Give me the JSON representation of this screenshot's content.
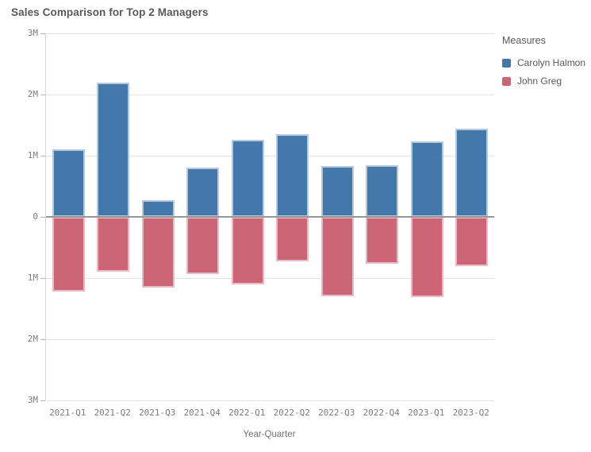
{
  "title": "Sales Comparison for Top 2 Managers",
  "legend": {
    "title": "Measures",
    "items": [
      {
        "label": "Carolyn Halmon",
        "color": "#4477aa"
      },
      {
        "label": "John Greg",
        "color": "#cc6677"
      }
    ]
  },
  "chart_data": {
    "type": "bar",
    "title": "Sales Comparison for Top 2 Managers",
    "xlabel": "Year-Quarter",
    "ylabel": "",
    "units": "M",
    "ylim": [
      -3,
      3
    ],
    "grid": true,
    "legend_position": "right",
    "categories": [
      "2021-Q1",
      "2021-Q2",
      "2021-Q3",
      "2021-Q4",
      "2022-Q1",
      "2022-Q2",
      "2022-Q3",
      "2022-Q4",
      "2023-Q1",
      "2023-Q2"
    ],
    "series": [
      {
        "name": "Carolyn Halmon",
        "color": "#4477aa",
        "values": [
          1.1,
          2.2,
          0.27,
          0.8,
          1.26,
          1.35,
          0.83,
          0.85,
          1.23,
          1.44
        ]
      },
      {
        "name": "John Greg",
        "color": "#cc6677",
        "values": [
          -1.22,
          -0.9,
          -1.16,
          -0.93,
          -1.1,
          -0.73,
          -1.3,
          -0.77,
          -1.31,
          -0.8
        ]
      }
    ],
    "yticks": [
      {
        "value": 3,
        "label": "3M"
      },
      {
        "value": 2,
        "label": "2M"
      },
      {
        "value": 1,
        "label": "1M"
      },
      {
        "value": 0,
        "label": "0"
      },
      {
        "value": -1,
        "label": "1M"
      },
      {
        "value": -2,
        "label": "2M"
      },
      {
        "value": -3,
        "label": "3M"
      }
    ]
  },
  "colors": {
    "blue": "#4477aa",
    "rose": "#cc6677",
    "gridline": "#e2e2e2",
    "zero_line": "#969696",
    "text_gray": "#595959",
    "tick_gray": "#7b7b7b",
    "background": "#ffffff"
  }
}
